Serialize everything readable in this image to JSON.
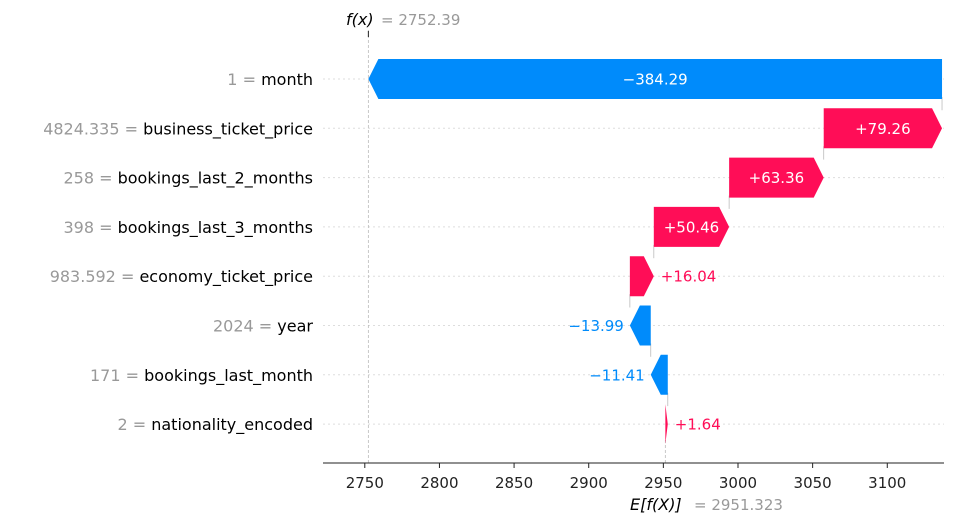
{
  "chart_data": {
    "type": "waterfall",
    "fx_label": "f(x)",
    "fx_value": "= 2752.39",
    "ex_label": "E[f(X)]",
    "ex_value": "= 2951.323",
    "base_value": 2951.323,
    "final_value": 2752.39,
    "xlim": [
      2722,
      3138
    ],
    "xticks": [
      2750,
      2800,
      2850,
      2900,
      2950,
      3000,
      3050,
      3100
    ],
    "grid": "dotted horizontal",
    "colors": {
      "positive": "#ff0d57",
      "negative": "#008bfb",
      "value_label": "#999999"
    },
    "features": [
      {
        "value": "1",
        "name": "month",
        "contribution": -384.29,
        "label": "−384.29"
      },
      {
        "value": "4824.335",
        "name": "business_ticket_price",
        "contribution": 79.26,
        "label": "+79.26"
      },
      {
        "value": "258",
        "name": "bookings_last_2_months",
        "contribution": 63.36,
        "label": "+63.36"
      },
      {
        "value": "398",
        "name": "bookings_last_3_months",
        "contribution": 50.46,
        "label": "+50.46"
      },
      {
        "value": "983.592",
        "name": "economy_ticket_price",
        "contribution": 16.04,
        "label": "+16.04"
      },
      {
        "value": "2024",
        "name": "year",
        "contribution": -13.99,
        "label": "−13.99"
      },
      {
        "value": "171",
        "name": "bookings_last_month",
        "contribution": -11.41,
        "label": "−11.41"
      },
      {
        "value": "2",
        "name": "nationality_encoded",
        "contribution": 1.64,
        "label": "+1.64"
      }
    ]
  }
}
